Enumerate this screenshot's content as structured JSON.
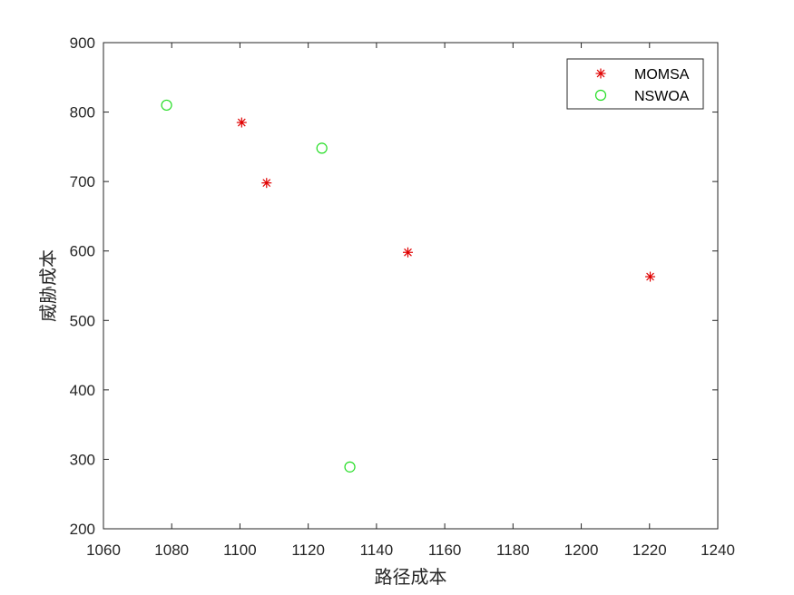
{
  "chart_data": {
    "type": "scatter",
    "title": "",
    "xlabel": "路径成本",
    "ylabel": "威胁成本",
    "xlim": [
      1060,
      1240
    ],
    "ylim": [
      200,
      900
    ],
    "xticks": [
      1060,
      1080,
      1100,
      1120,
      1140,
      1160,
      1180,
      1200,
      1220,
      1240
    ],
    "yticks": [
      200,
      300,
      400,
      500,
      600,
      700,
      800,
      900
    ],
    "grid": false,
    "legend_position": "top-right",
    "series": [
      {
        "name": "MOMSA",
        "marker": "asterisk",
        "color": "#e00000",
        "x": [
          1100.5,
          1107.8,
          1149.2,
          1220.2
        ],
        "y": [
          785,
          698,
          598,
          563
        ]
      },
      {
        "name": "NSWOA",
        "marker": "circle",
        "color": "#22dd22",
        "x": [
          1078.5,
          1124.0,
          1132.2
        ],
        "y": [
          810,
          748,
          289
        ]
      }
    ]
  }
}
